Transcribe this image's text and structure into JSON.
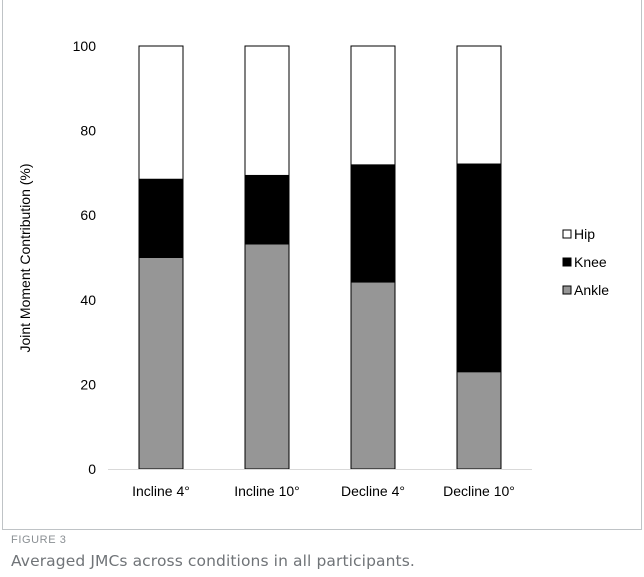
{
  "chart_data": {
    "type": "bar",
    "stacked": true,
    "categories": [
      "Incline 4°",
      "Incline 10°",
      "Decline 4°",
      "Decline 10°"
    ],
    "series": [
      {
        "name": "Ankle",
        "values": [
          50,
          53.2,
          44.2,
          23
        ],
        "color": "#969696"
      },
      {
        "name": "Knee",
        "values": [
          18.5,
          16.2,
          27.7,
          49.1
        ],
        "color": "#000000"
      },
      {
        "name": "Hip",
        "values": [
          31.5,
          30.6,
          28.1,
          27.9
        ],
        "color": "#ffffff"
      }
    ],
    "legend_order": [
      "Hip",
      "Knee",
      "Ankle"
    ],
    "legend_position": "right",
    "ylabel": "Joint Moment Contribution (%)",
    "ylim": [
      0,
      100
    ],
    "yticks": [
      0,
      20,
      40,
      60,
      80,
      100
    ],
    "grid": false
  },
  "caption": {
    "label": "FIGURE 3",
    "text": "Averaged JMCs across conditions in all participants."
  }
}
